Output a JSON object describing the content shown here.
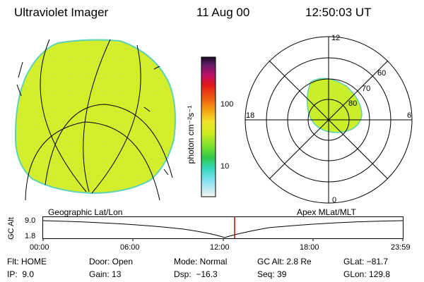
{
  "header": {
    "instrument": "Ultraviolet Imager",
    "date": "11 Aug 00",
    "time": "12:50:03 UT"
  },
  "colorbar": {
    "unit": "photon cm⁻²s⁻¹",
    "ticks": [
      "100",
      "10"
    ]
  },
  "polar_plot": {
    "mlt_labels": {
      "top": "12",
      "left": "18",
      "right": "6",
      "bottom": "0"
    },
    "lat_labels": [
      "60",
      "70",
      "80"
    ]
  },
  "captions": {
    "left": "Geographic Lat/Lon",
    "right": "Apex MLat/MLT"
  },
  "altitude_plot": {
    "ylabel": "GC Alt",
    "y_ticks": [
      "9.0",
      "1.8"
    ],
    "x_ticks": [
      "00:00",
      "06:00",
      "12:00",
      "18:00",
      "23:59"
    ],
    "marker_color": "#cc0000"
  },
  "info": {
    "row1": [
      "Flt: HOME",
      "Door: Open",
      "Mode: Normal",
      "GC Alt: 2.8 Re",
      "GLat: −81.7"
    ],
    "row2": [
      "IP:  9.0",
      "Gain: 13",
      "Dsp:  −16.3",
      "Seq: 39",
      "GLon: 129.8"
    ]
  },
  "colors": {
    "image_fill": "#d4ee2c",
    "image_edge": "#5ed3b4",
    "accent": "#cc0000"
  }
}
